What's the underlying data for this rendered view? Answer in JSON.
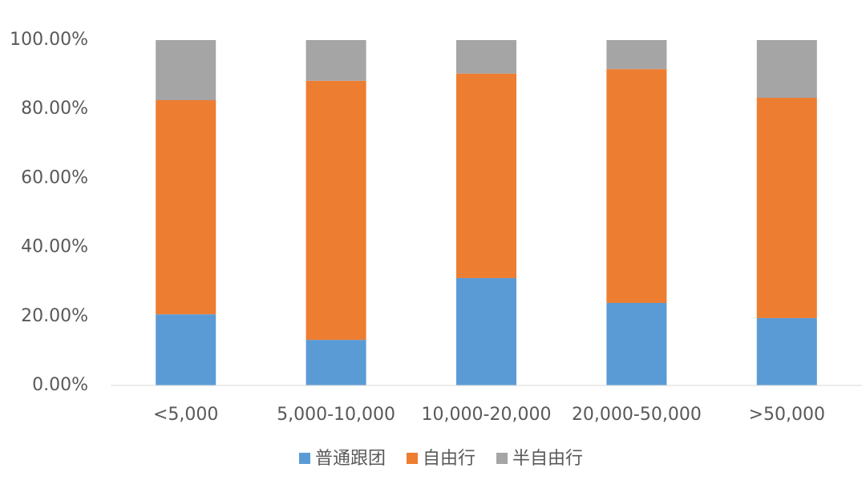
{
  "chart_data": {
    "type": "stacked_bar",
    "categories": [
      "<5,000",
      "5,000-10,000",
      "10,000-20,000",
      "20,000-50,000",
      ">50,000"
    ],
    "series": [
      {
        "name": "普通跟团",
        "color": "#5b9bd5",
        "values": [
          20.6,
          13.2,
          31.1,
          23.9,
          19.5
        ]
      },
      {
        "name": "自由行",
        "color": "#ed7d31",
        "values": [
          62.0,
          75.0,
          59.2,
          67.7,
          63.8
        ]
      },
      {
        "name": "半自由行",
        "color": "#a5a5a5",
        "values": [
          17.4,
          11.8,
          9.7,
          8.4,
          16.7
        ]
      }
    ],
    "ylim": [
      0,
      100
    ],
    "yticks": [
      {
        "value": 0,
        "label": "0.00%"
      },
      {
        "value": 20,
        "label": "20.00%"
      },
      {
        "value": 40,
        "label": "40.00%"
      },
      {
        "value": 60,
        "label": "60.00%"
      },
      {
        "value": 80,
        "label": "80.00%"
      },
      {
        "value": 100,
        "label": "100.00%"
      }
    ],
    "grid": false,
    "legend": "bottom"
  }
}
